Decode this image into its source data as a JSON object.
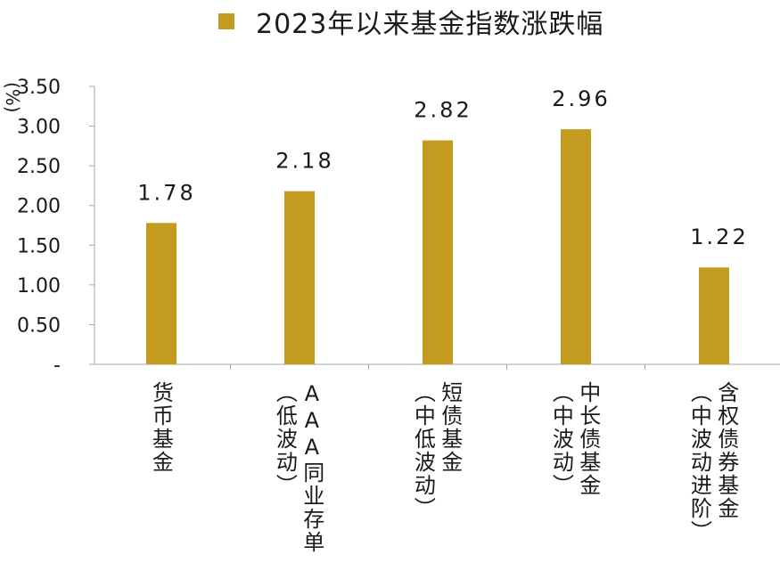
{
  "chart_data": {
    "type": "bar",
    "title": "2023年以来基金指数涨跌幅",
    "legend": [
      {
        "name": "2023年以来基金指数涨跌幅",
        "color": "#C29B1F"
      }
    ],
    "ylabel": "(%)",
    "ylim": [
      0,
      3.5
    ],
    "yticks": [
      "-",
      "0.50",
      "1.00",
      "1.50",
      "2.00",
      "2.50",
      "3.00",
      "3.50"
    ],
    "ytick_values": [
      0,
      0.5,
      1.0,
      1.5,
      2.0,
      2.5,
      3.0,
      3.5
    ],
    "categories": [
      [
        "货币基金"
      ],
      [
        "AAA同业存单",
        "（低波动）"
      ],
      [
        "短债基金",
        "（中低波动）"
      ],
      [
        "中长债基金",
        "（中波动）"
      ],
      [
        "含权债券基金",
        "（中波动进阶）"
      ]
    ],
    "values": [
      1.78,
      2.18,
      2.82,
      2.96,
      1.22
    ],
    "data_labels": [
      "1.78",
      "2.18",
      "2.82",
      "2.96",
      "1.22"
    ],
    "bar_color": "#C29B1F",
    "grid": false,
    "legend_position": "top"
  }
}
